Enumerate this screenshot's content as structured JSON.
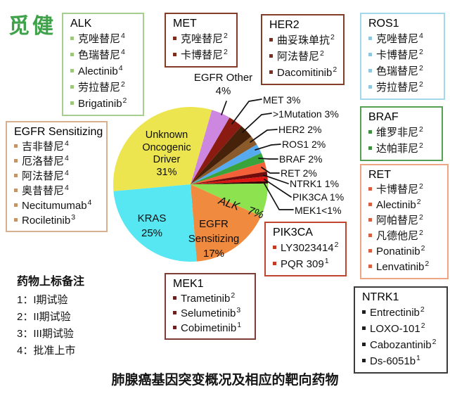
{
  "logo": "觅健",
  "chart_data": {
    "type": "pie",
    "title": "肺腺癌基因突变概况及相应的靶向药物",
    "legend_position": "none",
    "start_angle_deg": 16,
    "direction": "clockwise",
    "slices": [
      {
        "name": "EGFR Other",
        "value": 4,
        "pct_label": "4%",
        "color": "#cd87e0"
      },
      {
        "name": "MET",
        "value": 3,
        "pct_label": "3%",
        "color": "#8b1a10"
      },
      {
        "name": ">1Mutation",
        "value": 3,
        "pct_label": "3%",
        "color": "#47220a"
      },
      {
        "name": "HER2",
        "value": 2,
        "pct_label": "2%",
        "color": "#8b5a2b"
      },
      {
        "name": "ROS1",
        "value": 2,
        "pct_label": "2%",
        "color": "#56aaf0"
      },
      {
        "name": "BRAF",
        "value": 2,
        "pct_label": "2%",
        "color": "#3aa43c"
      },
      {
        "name": "RET",
        "value": 2,
        "pct_label": "2%",
        "color": "#f46038"
      },
      {
        "name": "NTRK1",
        "value": 1,
        "pct_label": "1%",
        "color": "#700c0c"
      },
      {
        "name": "PIK3CA",
        "value": 1,
        "pct_label": "1%",
        "color": "#dd1612"
      },
      {
        "name": "MEK1",
        "value": 0.5,
        "pct_label": "<1%",
        "color": "#300505"
      },
      {
        "name": "ALK",
        "value": 7,
        "pct_label": "7%",
        "color": "#8ce24f"
      },
      {
        "name": "EGFR Sensitizing",
        "value": 17,
        "pct_label": "17%",
        "color": "#f08a3e"
      },
      {
        "name": "KRAS",
        "value": 25,
        "pct_label": "25%",
        "color": "#57e7f2"
      },
      {
        "name": "Unknown Oncogenic Driver",
        "value": 31,
        "pct_label": "31%",
        "color": "#ece54f"
      }
    ]
  },
  "pie_labels": {
    "unknown": [
      "Unknown",
      "Oncogenic",
      "Driver",
      "31%"
    ],
    "kras": [
      "KRAS",
      "25%"
    ],
    "egfr_sensitizing": [
      "EGFR",
      "Sensitizing",
      "17%"
    ],
    "egfr_other": [
      "EGFR Other",
      "4%"
    ],
    "alk": "ALK 7%"
  },
  "callouts": [
    "MET 3%",
    ">1Mutation 3%",
    "HER2 2%",
    "ROS1 2%",
    "BRAF 2%",
    "RET 2%",
    "NTRK1 1%",
    "PIK3CA 1%",
    "MEK1<1%"
  ],
  "boxes": {
    "alk": {
      "title": "ALK",
      "items": [
        {
          "t": "克唑替尼",
          "s": "4"
        },
        {
          "t": "色瑞替尼",
          "s": "4"
        },
        {
          "t": "Alectinib",
          "s": "4"
        },
        {
          "t": "劳拉替尼",
          "s": "2"
        },
        {
          "t": "Brigatinib",
          "s": "2"
        }
      ]
    },
    "met": {
      "title": "MET",
      "items": [
        {
          "t": "克唑替尼",
          "s": "2"
        },
        {
          "t": "卡博替尼",
          "s": "2"
        }
      ]
    },
    "her2": {
      "title": "HER2",
      "items": [
        {
          "t": "曲妥珠单抗",
          "s": "2"
        },
        {
          "t": "阿法替尼",
          "s": "2"
        },
        {
          "t": "Dacomitinib",
          "s": "2"
        }
      ]
    },
    "ros1": {
      "title": "ROS1",
      "items": [
        {
          "t": "克唑替尼",
          "s": "4"
        },
        {
          "t": "卡博替尼",
          "s": "2"
        },
        {
          "t": "色瑞替尼",
          "s": "2"
        },
        {
          "t": "劳拉替尼",
          "s": "2"
        }
      ]
    },
    "braf": {
      "title": "BRAF",
      "items": [
        {
          "t": "维罗非尼",
          "s": "2"
        },
        {
          "t": "达帕菲尼",
          "s": "2"
        }
      ]
    },
    "ret": {
      "title": "RET",
      "items": [
        {
          "t": "卡博替尼",
          "s": "2"
        },
        {
          "t": "Alectinib",
          "s": "2"
        },
        {
          "t": "阿帕替尼",
          "s": "2"
        },
        {
          "t": "凡德他尼",
          "s": "2"
        },
        {
          "t": "Ponatinib",
          "s": "2"
        },
        {
          "t": "Lenvatinib",
          "s": "2"
        }
      ]
    },
    "ntrk1": {
      "title": "NTRK1",
      "items": [
        {
          "t": "Entrectinib",
          "s": "2"
        },
        {
          "t": "LOXO-101",
          "s": "2"
        },
        {
          "t": "Cabozantinib",
          "s": "2"
        },
        {
          "t": "Ds-6051b",
          "s": "1"
        }
      ]
    },
    "egfr_sensitizing": {
      "title": "EGFR Sensitizing",
      "items": [
        {
          "t": "吉非替尼",
          "s": "4"
        },
        {
          "t": "厄洛替尼",
          "s": "4"
        },
        {
          "t": "阿法替尼",
          "s": "4"
        },
        {
          "t": "奥昔替尼",
          "s": "4"
        },
        {
          "t": "Necitumumab",
          "s": "4"
        },
        {
          "t": "Rociletinib",
          "s": "3"
        }
      ]
    },
    "pik3ca": {
      "title": "PIK3CA",
      "items": [
        {
          "t": "LY3023414",
          "s": "2"
        },
        {
          "t": "PQR 309",
          "s": "1"
        }
      ]
    },
    "mek1": {
      "title": "MEK1",
      "items": [
        {
          "t": "Trametinib",
          "s": "2"
        },
        {
          "t": "Selumetinib",
          "s": "3"
        },
        {
          "t": "Cobimetinib",
          "s": "1"
        }
      ]
    }
  },
  "notes": {
    "title": "药物上标备注",
    "items": [
      "1：I期试验",
      "2：II期试验",
      "3：III期试验",
      "4：批准上市"
    ]
  },
  "colors": {
    "logo_green": "#3fa24a",
    "box_alk_border": "#a6cf8f",
    "box_met_her2_border": "#833c28",
    "box_ros1_border": "#a3d8ea",
    "box_braf_border": "#55a055",
    "box_ret_border": "#eda583",
    "box_ntrk1_border": "#3a3a3a",
    "box_egfr_sensitizing_border": "#d7b08e",
    "box_pik3ca_border": "#c0452e",
    "box_mek1_border": "#7d3c34",
    "leader_line": "#111111"
  }
}
